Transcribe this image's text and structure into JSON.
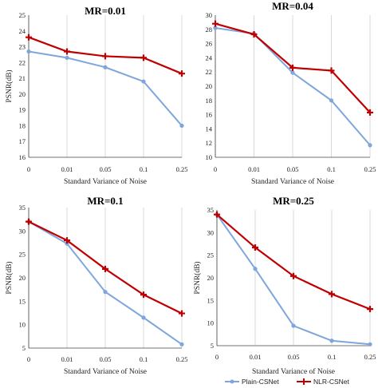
{
  "chart_data": [
    {
      "type": "line",
      "title": "MR=0.01",
      "xlabel": "Standard Variance of Noise",
      "ylabel": "PSNR(dB)",
      "categories": [
        "0",
        "0.01",
        "0.05",
        "0.1",
        "0.25"
      ],
      "ylim": [
        16,
        25
      ],
      "yticks": [
        "16",
        "17",
        "18",
        "19",
        "20",
        "21",
        "22",
        "23",
        "24",
        "25"
      ],
      "grid": "vertical",
      "series": [
        {
          "name": "Plain-CSNet",
          "color": "#7ea6dc",
          "marker": "circle",
          "values": [
            22.7,
            22.3,
            21.7,
            20.8,
            18.0
          ]
        },
        {
          "name": "NLR-CSNet",
          "color": "#c00000",
          "marker": "plus",
          "values": [
            23.6,
            22.7,
            22.4,
            22.3,
            21.3
          ]
        }
      ]
    },
    {
      "type": "line",
      "title": "MR=0.04",
      "xlabel": "Standard Variance of Noise",
      "ylabel": "",
      "categories": [
        "0",
        "0.01",
        "0.05",
        "0.1",
        "0.25"
      ],
      "ylim": [
        10,
        30
      ],
      "yticks": [
        "10",
        "12",
        "14",
        "16",
        "18",
        "20",
        "22",
        "24",
        "26",
        "28",
        "30"
      ],
      "grid": "vertical",
      "series": [
        {
          "name": "Plain-CSNet",
          "color": "#7ea6dc",
          "marker": "circle",
          "values": [
            28.2,
            27.4,
            21.9,
            18.0,
            11.7
          ]
        },
        {
          "name": "NLR-CSNet",
          "color": "#c00000",
          "marker": "plus",
          "values": [
            28.8,
            27.3,
            22.6,
            22.2,
            16.3
          ]
        }
      ]
    },
    {
      "type": "line",
      "title": "MR=0.1",
      "xlabel": "Standard Variance of Noise",
      "ylabel": "PSNR(dB)",
      "categories": [
        "0",
        "0.01",
        "0.05",
        "0.1",
        "0.25"
      ],
      "ylim": [
        5,
        35
      ],
      "yticks": [
        "5",
        "10",
        "15",
        "20",
        "25",
        "30",
        "35"
      ],
      "grid": "vertical",
      "series": [
        {
          "name": "Plain-CSNet",
          "color": "#7ea6dc",
          "marker": "circle",
          "values": [
            32.0,
            27.3,
            17.0,
            11.5,
            5.8
          ]
        },
        {
          "name": "NLR-CSNet",
          "color": "#c00000",
          "marker": "plus",
          "values": [
            32.0,
            28.0,
            21.9,
            16.4,
            12.4
          ]
        }
      ]
    },
    {
      "type": "line",
      "title": "MR=0.25",
      "xlabel": "Standard Variance of Noise",
      "ylabel": "PSNR(dB)",
      "categories": [
        "0",
        "0.01",
        "0.05",
        "0.1",
        "0.25"
      ],
      "ylim": [
        5,
        35
      ],
      "yticks": [
        "5",
        "10",
        "15",
        "20",
        "25",
        "30",
        "35"
      ],
      "grid": "vertical",
      "legend": "bottom",
      "series": [
        {
          "name": "Plain-CSNet",
          "color": "#7ea6dc",
          "marker": "circle",
          "values": [
            34.0,
            22.0,
            9.4,
            6.1,
            5.3
          ]
        },
        {
          "name": "NLR-CSNet",
          "color": "#c00000",
          "marker": "plus",
          "values": [
            34.0,
            26.7,
            20.4,
            16.4,
            13.1
          ]
        }
      ]
    }
  ]
}
